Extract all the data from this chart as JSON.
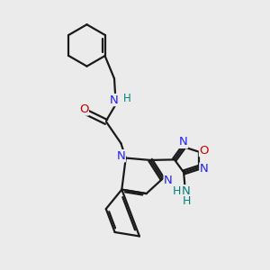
{
  "bg_color": "#ebebeb",
  "bond_color": "#1a1a1a",
  "N_color": "#2020ff",
  "O_color": "#cc0000",
  "NH_color": "#008080",
  "line_width": 1.6,
  "figsize": [
    3.0,
    3.0
  ],
  "dpi": 100,
  "xlim": [
    0,
    10
  ],
  "ylim": [
    0,
    10
  ]
}
